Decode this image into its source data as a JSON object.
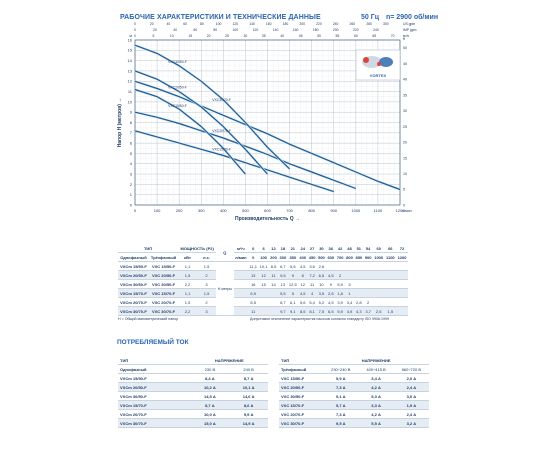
{
  "header": {
    "title": "РАБОЧИЕ ХАРАКТЕРИСТИКИ И ТЕХНИЧЕСКИЕ ДАННЫЕ",
    "freq": "50 Гц",
    "rpm": "n= 2900 об/мин"
  },
  "chart_data": {
    "type": "line",
    "x_unit": "л/мин",
    "y_unit": "м",
    "xlabel": "Производительность Q",
    "ylabel": "Напор H (метров)",
    "xlim": [
      0,
      1200
    ],
    "ylim": [
      0,
      16
    ],
    "x_ticks": [
      0,
      100,
      200,
      300,
      400,
      500,
      600,
      700,
      800,
      900,
      1000,
      1100,
      1200
    ],
    "y_ticks": [
      0,
      1,
      2,
      3,
      4,
      5,
      6,
      7,
      8,
      9,
      10,
      11,
      12,
      13,
      14,
      15,
      16
    ],
    "top_ticks_m3h": [
      0,
      5,
      10,
      15,
      20,
      25,
      30,
      35,
      40,
      45,
      50,
      55,
      60,
      65,
      70
    ],
    "top_unit_m3h": "м³/ч",
    "top_ticks_imp": [
      0,
      20,
      40,
      60,
      80,
      100,
      120,
      140,
      160,
      180,
      200,
      220,
      240
    ],
    "top_unit_imp": "IMP gpm",
    "top_ticks_us": [
      0,
      20,
      40,
      60,
      80,
      100,
      120,
      140,
      160,
      180,
      200,
      220,
      240,
      260,
      280,
      300
    ],
    "top_unit_us": "US gpm",
    "right_unit": "ft",
    "right_ticks": [
      0,
      5,
      10,
      15,
      20,
      25,
      30,
      35,
      40,
      45,
      50
    ],
    "logo_text": "VORTEX",
    "series": [
      {
        "name": "VXC30/70-F",
        "x": [
          0,
          100,
          200,
          300,
          400,
          500,
          600,
          700,
          800,
          900,
          1000,
          1100,
          1200
        ],
        "y": [
          12.0,
          11.3,
          10.5,
          9.6,
          8.7,
          7.8,
          6.9,
          5.9,
          5.0,
          4.1,
          3.2,
          2.3,
          1.5
        ]
      },
      {
        "name": "VXC20/70-F",
        "x": [
          0,
          100,
          200,
          300,
          400,
          500,
          600,
          700,
          800,
          900,
          1000
        ],
        "y": [
          9.0,
          8.5,
          7.9,
          7.2,
          6.5,
          5.7,
          4.9,
          4.0,
          3.2,
          2.4,
          1.6
        ]
      },
      {
        "name": "VXC15/70-F",
        "x": [
          0,
          100,
          200,
          300,
          400,
          500,
          600,
          700,
          800,
          900
        ],
        "y": [
          7.2,
          6.6,
          6.0,
          5.4,
          4.8,
          4.1,
          3.4,
          2.7,
          2.0,
          1.3
        ]
      },
      {
        "name": "VXC30/50-F",
        "x": [
          0,
          100,
          200,
          300,
          400,
          500,
          600,
          700
        ],
        "y": [
          15.5,
          14.7,
          13.5,
          12.0,
          10.2,
          8.0,
          5.6,
          3.5
        ]
      },
      {
        "name": "VXC20/50-F",
        "x": [
          0,
          100,
          200,
          300,
          400,
          500,
          600
        ],
        "y": [
          13.0,
          12.2,
          11.0,
          9.5,
          7.6,
          5.4,
          3.0
        ]
      },
      {
        "name": "VXC15/50-F",
        "x": [
          0,
          100,
          200,
          300,
          400,
          500
        ],
        "y": [
          11.2,
          10.5,
          9.3,
          7.6,
          5.5,
          3.0
        ]
      }
    ]
  },
  "table1": {
    "h_type": "ТИП",
    "h_single": "Однофазный",
    "h_three": "Трёхфазный",
    "h_power": "МОЩНОСТЬ (P2)",
    "h_kw": "кВт",
    "h_hp": "л.с.",
    "h_m3h": "м³/ч",
    "h_lmin": "л/мин",
    "h_q": "Q",
    "h_head": "H метры",
    "m3h": [
      "0",
      "6",
      "12",
      "18",
      "21",
      "24",
      "27",
      "30",
      "36",
      "42",
      "48",
      "51",
      "54",
      "60",
      "66",
      "72"
    ],
    "lmin": [
      "0",
      "100",
      "200",
      "300",
      "350",
      "400",
      "450",
      "500",
      "600",
      "700",
      "800",
      "850",
      "900",
      "1000",
      "1100",
      "1200"
    ],
    "rows": [
      {
        "s": "VXCm 15/50-F",
        "t": "VXC 15/50-F",
        "kw": "1,1",
        "hp": "1,5",
        "h": [
          "11,1",
          "10,1",
          "8,5",
          "6,7",
          "5,6",
          "4,5",
          "3,6",
          "2,6",
          "",
          "",
          "",
          "",
          "",
          "",
          "",
          ""
        ]
      },
      {
        "s": "VXCm 20/50-F",
        "t": "VXC 20/50-F",
        "kw": "1,5",
        "hp": "2",
        "h": [
          "13",
          "12",
          "11",
          "9,5",
          "9",
          "8",
          "7,2",
          "6,5",
          "4,5",
          "2",
          "",
          "",
          "",
          "",
          "",
          ""
        ]
      },
      {
        "s": "VXCm 30/50-F",
        "t": "VXC 30/50-F",
        "kw": "2,2",
        "hp": "3",
        "h": [
          "16",
          "15",
          "14",
          "13",
          "12,5",
          "12",
          "11",
          "10",
          "9",
          "5,9",
          "3",
          "",
          "",
          "",
          "",
          ""
        ]
      },
      {
        "s": "VXCm 15/70-F",
        "t": "VXC 15/70-F",
        "kw": "1,1",
        "hp": "1,5",
        "h": [
          "6,9",
          "",
          "",
          "5,5",
          "5",
          "4,5",
          "4",
          "3,5",
          "2,6",
          "1,8",
          "1",
          "",
          "",
          "",
          "",
          ""
        ]
      },
      {
        "s": "VXCm 20/70-F",
        "t": "VXC 20/70-F",
        "kw": "1,5",
        "hp": "2",
        "h": [
          "8,5",
          "",
          "",
          "6,7",
          "6,1",
          "5,6",
          "5,4",
          "5,2",
          "4,5",
          "3,9",
          "3,4",
          "2,8",
          "2",
          "",
          "",
          ""
        ]
      },
      {
        "s": "VXCm 30/70-F",
        "t": "VXC 30/70-F",
        "kw": "2,2",
        "hp": "3",
        "h": [
          "11",
          "",
          "",
          "9,7",
          "9,1",
          "8,5",
          "8,1",
          "7,5",
          "6,5",
          "5,9",
          "4,9",
          "4,3",
          "3,7",
          "2,5",
          "1,5",
          ""
        ]
      }
    ],
    "note_left": "H = Общий манометрический напор",
    "note_right": "Допустимое отклонение характеристик насосов согласно стандарту ISO 9906:1999"
  },
  "section2": {
    "title": "ПОТРЕБЛЯЕМЫЙ ТОК",
    "left": {
      "h_type": "ТИП",
      "h_single": "Однофазный",
      "h_voltage": "НАПРЯЖЕНИЕ",
      "v1": "230 В",
      "v2": "240 В",
      "rows": [
        {
          "n": "VXCm 15/50-F",
          "a": "8,4 А",
          "b": "8,7 А"
        },
        {
          "n": "VXCm 20/50-F",
          "a": "10,2 А",
          "b": "10,1 А"
        },
        {
          "n": "VXCm 30/50-F",
          "a": "14,5 А",
          "b": "14,6 А"
        },
        {
          "n": "VXCm 15/70-F",
          "a": "8,7 А",
          "b": "8,6 А"
        },
        {
          "n": "VXCm 20/70-F",
          "a": "10,0 А",
          "b": "9,9 А"
        },
        {
          "n": "VXCm 30/70-F",
          "a": "15,0 А",
          "b": "14,9 А"
        }
      ]
    },
    "right": {
      "h_type": "ТИП",
      "h_three": "Трёхфазный",
      "h_voltage": "НАПРЯЖЕНИЕ",
      "v1": "230÷240 В",
      "v2": "400÷415 В",
      "v3": "660÷720 В",
      "rows": [
        {
          "n": "VXC 15/50-F",
          "a": "5,9 А",
          "b": "3,4 А",
          "c": "2,0 А"
        },
        {
          "n": "VXC 20/50-F",
          "a": "7,3 А",
          "b": "4,2 А",
          "c": "2,4 А"
        },
        {
          "n": "VXC 30/50-F",
          "a": "9,1 А",
          "b": "5,3 А",
          "c": "3,0 А"
        },
        {
          "n": "VXC 15/70-F",
          "a": "5,7 А",
          "b": "3,3 А",
          "c": "1,9 А"
        },
        {
          "n": "VXC 20/70-F",
          "a": "7,3 А",
          "b": "4,2 А",
          "c": "2,4 А"
        },
        {
          "n": "VXC 30/70-F",
          "a": "9,5 А",
          "b": "5,5 А",
          "c": "3,2 А"
        }
      ]
    }
  },
  "colors": {
    "curve": "#1b5d95",
    "title": "#2a64b0",
    "grid": "#b9c4d1",
    "text": "#1f3a66",
    "stripe": "#e6ecf4"
  }
}
